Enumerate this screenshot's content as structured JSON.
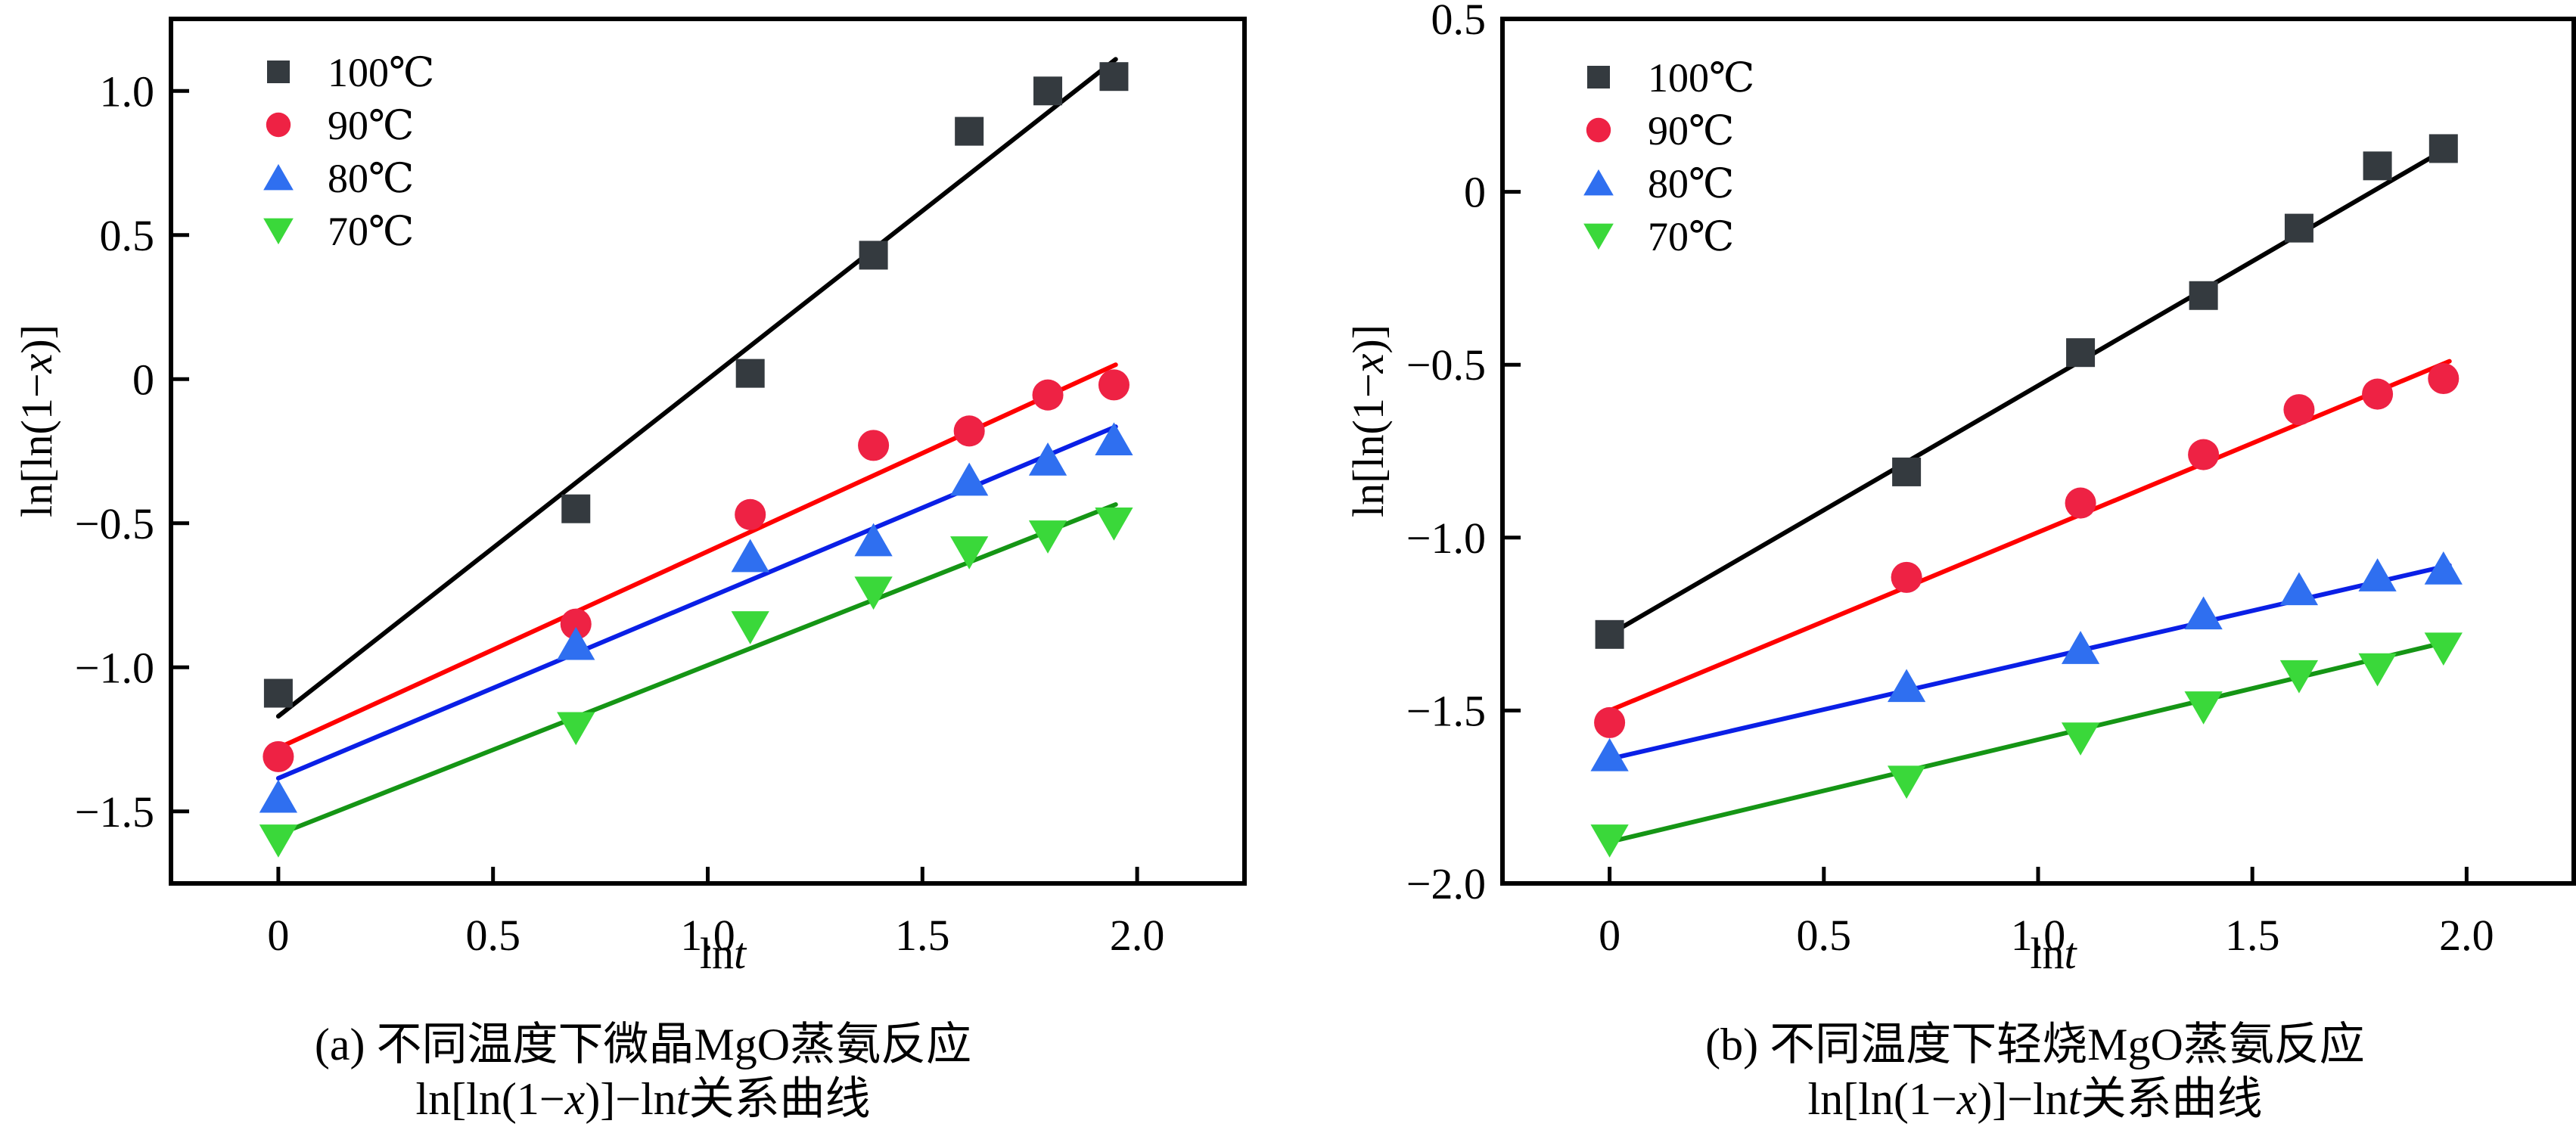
{
  "chart_data": [
    {
      "id": "a",
      "type": "scatter",
      "title": "",
      "caption_line1": "(a) 不同温度下微晶MgO蒸氨反应",
      "caption_line2_prefix": "ln[ln(1−",
      "caption_line2_var": "x",
      "caption_line2_mid": ")]−ln",
      "caption_line2_var2": "t",
      "caption_line2_suffix": "关系曲线",
      "xlabel": "lnt",
      "ylabel": "ln[ln(1−x)]",
      "xlim": [
        -0.25,
        2.25
      ],
      "ylim": [
        -1.75,
        1.25
      ],
      "xticks": [
        0,
        0.5,
        1.0,
        1.5,
        2.0
      ],
      "xtick_labels": [
        "0",
        "0.5",
        "1.0",
        "1.5",
        "2.0"
      ],
      "yticks": [
        -1.5,
        -1.0,
        -0.5,
        0,
        0.5,
        1.0
      ],
      "ytick_labels": [
        "−1.5",
        "−1.0",
        "−0.5",
        "0",
        "0.5",
        "1.0"
      ],
      "grid": false,
      "legend_position": "top-left",
      "x": [
        0,
        0.693,
        1.099,
        1.386,
        1.609,
        1.792,
        1.946
      ],
      "series": [
        {
          "name": "100℃",
          "marker": "square",
          "color": "#343a3f",
          "line_color": "#000000",
          "values": [
            -1.09,
            -0.45,
            0.02,
            0.43,
            0.86,
            1.0,
            1.05
          ],
          "fit": [
            [
              0,
              -1.17
            ],
            [
              1.95,
              1.11
            ]
          ]
        },
        {
          "name": "90℃",
          "marker": "circle",
          "color": "#ee2244",
          "line_color": "#ff0000",
          "values": [
            -1.31,
            -0.85,
            -0.47,
            -0.23,
            -0.18,
            -0.055,
            -0.02
          ],
          "fit": [
            [
              0,
              -1.28
            ],
            [
              1.95,
              0.05
            ]
          ]
        },
        {
          "name": "80℃",
          "marker": "triangle-up",
          "color": "#2f6ff0",
          "line_color": "#0a1fe6",
          "values": [
            -1.45,
            -0.92,
            -0.615,
            -0.56,
            -0.35,
            -0.28,
            -0.21
          ],
          "fit": [
            [
              0,
              -1.385
            ],
            [
              1.95,
              -0.165
            ]
          ]
        },
        {
          "name": "70℃",
          "marker": "triangle-down",
          "color": "#3ad83a",
          "line_color": "#159515",
          "values": [
            -1.6,
            -1.21,
            -0.86,
            -0.74,
            -0.6,
            -0.545,
            -0.5
          ],
          "fit": [
            [
              0,
              -1.58
            ],
            [
              1.95,
              -0.435
            ]
          ]
        }
      ]
    },
    {
      "id": "b",
      "type": "scatter",
      "title": "",
      "caption_line1": "(b) 不同温度下轻烧MgO蒸氨反应",
      "caption_line2_prefix": "ln[ln(1−",
      "caption_line2_var": "x",
      "caption_line2_mid": ")]−ln",
      "caption_line2_var2": "t",
      "caption_line2_suffix": "关系曲线",
      "xlabel": "lnt",
      "ylabel": "ln[ln(1−x)]",
      "xlim": [
        -0.25,
        2.25
      ],
      "ylim": [
        -2.0,
        0.5
      ],
      "xticks": [
        0,
        0.5,
        1.0,
        1.5,
        2.0
      ],
      "xtick_labels": [
        "0",
        "0.5",
        "1.0",
        "1.5",
        "2.0"
      ],
      "yticks": [
        -2.0,
        -1.5,
        -1.0,
        -0.5,
        0,
        0.5
      ],
      "ytick_labels": [
        "−2.0",
        "−1.5",
        "−1.0",
        "−0.5",
        "0",
        "0.5"
      ],
      "grid": false,
      "legend_position": "top-left",
      "x": [
        0,
        0.693,
        1.099,
        1.386,
        1.609,
        1.792,
        1.946
      ],
      "series": [
        {
          "name": "100℃",
          "marker": "square",
          "color": "#343a3f",
          "line_color": "#000000",
          "values": [
            -1.28,
            -0.81,
            -0.465,
            -0.3,
            -0.105,
            0.075,
            0.125
          ],
          "fit": [
            [
              0,
              -1.28
            ],
            [
              1.96,
              0.13
            ]
          ]
        },
        {
          "name": "90℃",
          "marker": "circle",
          "color": "#ee2244",
          "line_color": "#ff0000",
          "values": [
            -1.535,
            -1.115,
            -0.9,
            -0.76,
            -0.63,
            -0.585,
            -0.54
          ],
          "fit": [
            [
              0,
              -1.5
            ],
            [
              1.96,
              -0.49
            ]
          ]
        },
        {
          "name": "80℃",
          "marker": "triangle-up",
          "color": "#2f6ff0",
          "line_color": "#0a1fe6",
          "values": [
            -1.63,
            -1.43,
            -1.32,
            -1.22,
            -1.15,
            -1.11,
            -1.09
          ],
          "fit": [
            [
              0,
              -1.64
            ],
            [
              1.96,
              -1.08
            ]
          ]
        },
        {
          "name": "70℃",
          "marker": "triangle-down",
          "color": "#3ad83a",
          "line_color": "#159515",
          "values": [
            -1.875,
            -1.705,
            -1.58,
            -1.49,
            -1.4,
            -1.38,
            -1.32
          ],
          "fit": [
            [
              0,
              -1.88
            ],
            [
              1.96,
              -1.3
            ]
          ]
        }
      ]
    }
  ]
}
